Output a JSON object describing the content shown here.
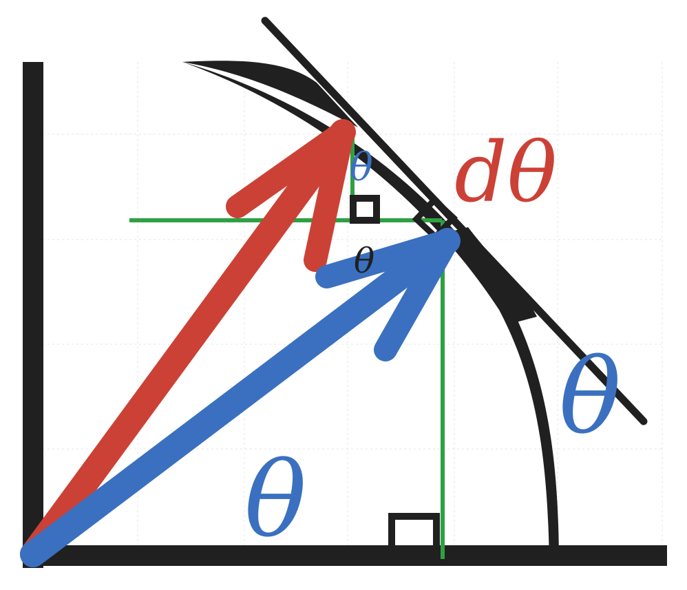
{
  "colors": {
    "black": "#202020",
    "red": "#cc4136",
    "blue": "#3a70bf",
    "green": "#2fa043",
    "grid": "#e6e6e6"
  },
  "labels": {
    "theta_main": "θ",
    "theta_right": "θ",
    "dtheta": "dθ",
    "theta_small_blue": "θ",
    "theta_small_black": "θ"
  },
  "icons": {
    "right_angle_marker": "square",
    "arrow": "arrowhead"
  }
}
